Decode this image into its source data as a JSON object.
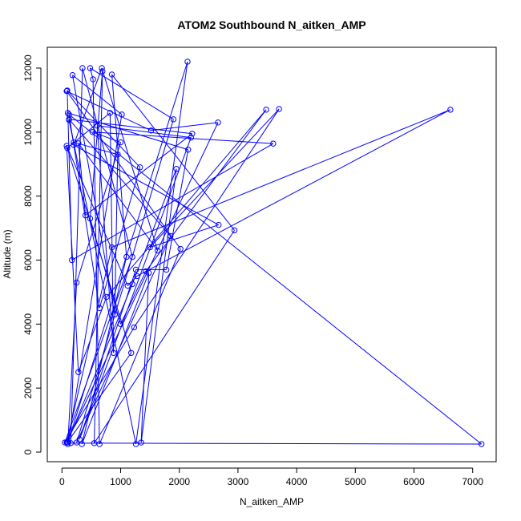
{
  "chart_data": {
    "type": "scatter",
    "title": "ATOM2 Southbound N_aitken_AMP",
    "xlabel": "N_aitken_AMP",
    "ylabel": "Altitude (m)",
    "xlim": [
      -250,
      7400
    ],
    "ylim": [
      -300,
      12650
    ],
    "x_ticks": [
      0,
      1000,
      2000,
      3000,
      4000,
      5000,
      6000,
      7000
    ],
    "y_ticks": [
      0,
      2000,
      4000,
      6000,
      8000,
      10000,
      12000
    ],
    "grid": false,
    "legend": "none",
    "series_color": "#0000ff",
    "marker": "open-circle",
    "connect_points": true,
    "series": [
      {
        "x": [
          100,
          2140,
          1260,
          120,
          200,
          950,
          900,
          180,
          1020,
          100,
          250,
          1000,
          520,
          3600,
          170,
          90,
          1330,
          640,
          120,
          7150,
          150,
          350,
          1200,
          50,
          1230,
          3700,
          1500,
          2670,
          200,
          680,
          1630,
          280,
          400,
          2220,
          120,
          1850,
          250,
          1900,
          480,
          530,
          640,
          2020,
          80,
          1520,
          2660,
          80,
          850,
          6620,
          1280,
          1120,
          80,
          280,
          760,
          3480,
          1430,
          1000,
          480,
          690,
          550,
          2940,
          850,
          1100,
          340,
          1480,
          1350,
          1950,
          1200,
          90,
          1180,
          90,
          820,
          880,
          600,
          2200,
          300,
          1260,
          1780,
          2150,
          100
        ],
        "y": [
          300,
          12200,
          250,
          10380,
          9680,
          9300,
          4300,
          11780,
          10550,
          250,
          5300,
          9680,
          10000,
          9640,
          6000,
          11300,
          8900,
          4500,
          10550,
          250,
          280,
          12000,
          6100,
          300,
          3900,
          10720,
          6400,
          7100,
          9600,
          12000,
          6300,
          9650,
          7400,
          9950,
          10400,
          6750,
          300,
          10400,
          12000,
          11650,
          250,
          6350,
          11280,
          10050,
          10300,
          300,
          6400,
          10700,
          5500,
          5200,
          9570,
          2500,
          4850,
          10700,
          5650,
          4000,
          7300,
          11900,
          280,
          6930,
          11800,
          6100,
          250,
          5600,
          300,
          8850,
          5250,
          300,
          3100,
          9500,
          10600,
          3100,
          10200,
          9830,
          400,
          5700,
          5700,
          9450,
          10600
        ]
      }
    ]
  }
}
